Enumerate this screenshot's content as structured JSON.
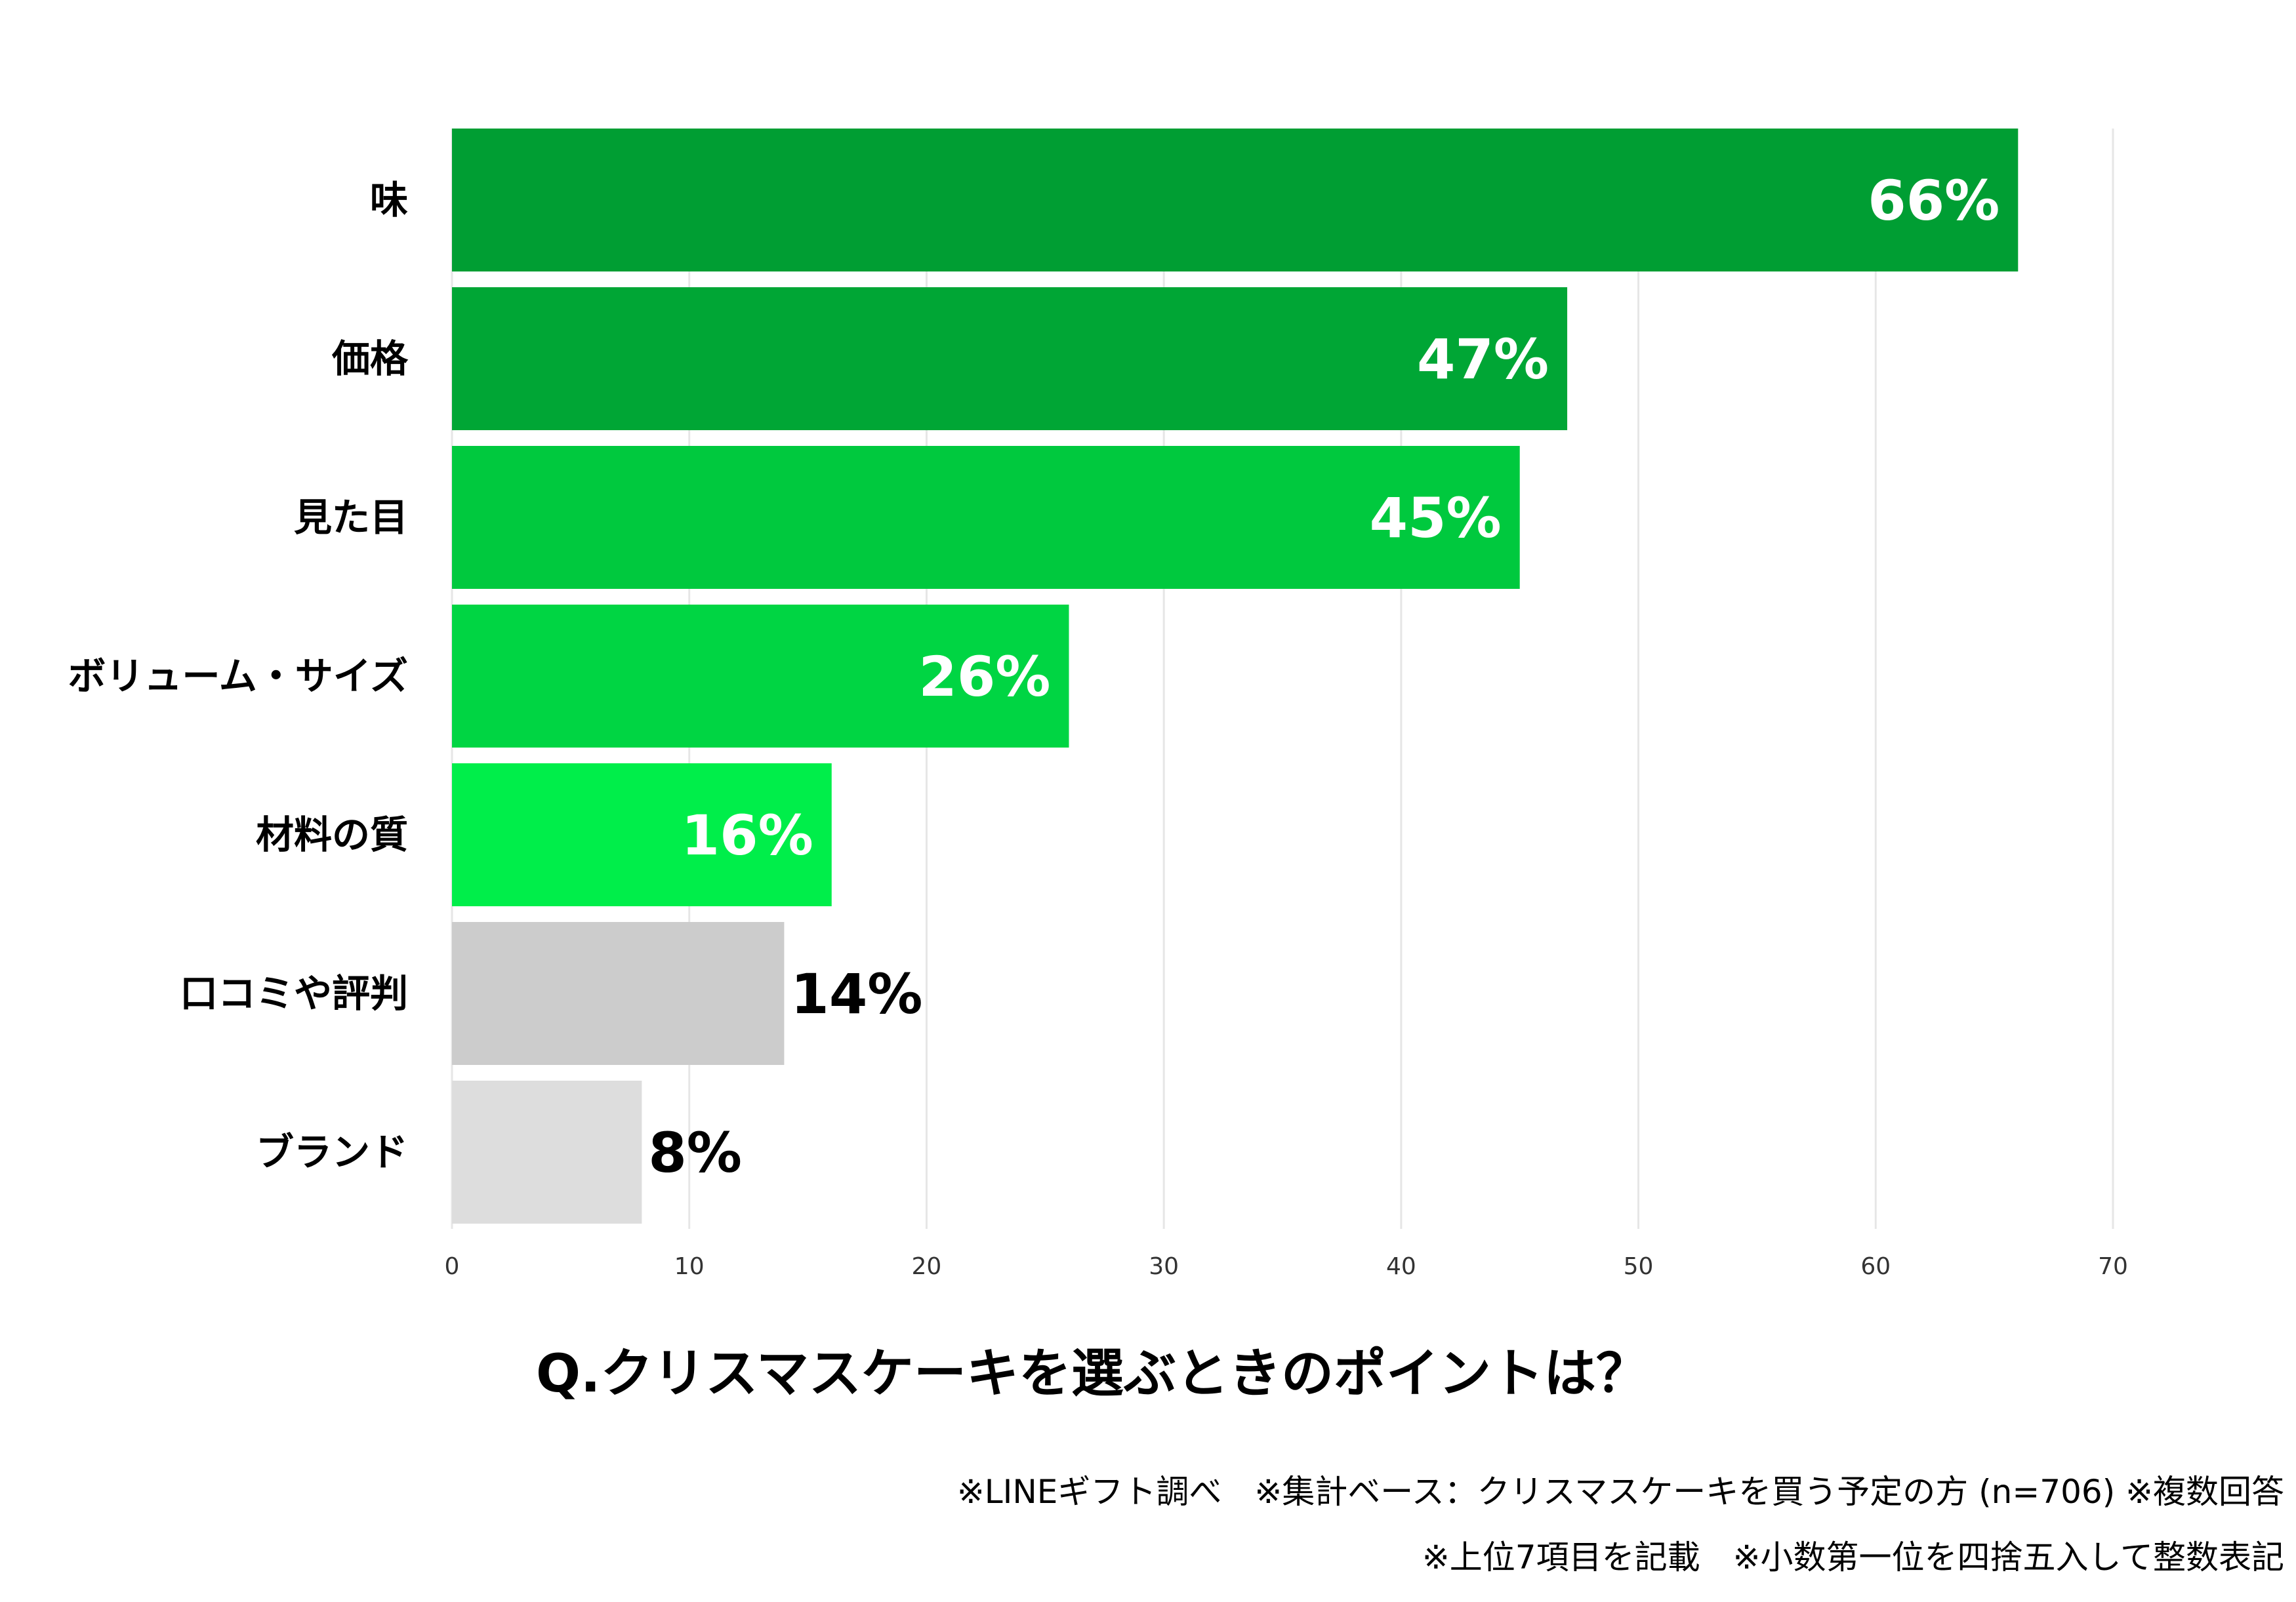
{
  "chart_data": {
    "type": "bar",
    "orientation": "horizontal",
    "title": "Q.クリスマスケーキを選ぶときのポイントは？",
    "categories": [
      "味",
      "価格",
      "見た目",
      "ボリューム・サイズ",
      "材料の質",
      "口コミや評判",
      "ブランド"
    ],
    "values": [
      66,
      47,
      45,
      26,
      16,
      14,
      8
    ],
    "value_labels": [
      "66%",
      "47%",
      "45%",
      "26%",
      "16%",
      "14%",
      "8%"
    ],
    "bar_colors": [
      "#009e33",
      "#00a635",
      "#00c93e",
      "#00d543",
      "#00ee4a",
      "#cccccc",
      "#dddddd"
    ],
    "label_colors": [
      "#ffffff",
      "#ffffff",
      "#ffffff",
      "#ffffff",
      "#ffffff",
      "#000000",
      "#000000"
    ],
    "label_inside": [
      true,
      true,
      true,
      true,
      true,
      false,
      false
    ],
    "x_ticks": [
      0,
      10,
      20,
      30,
      40,
      50,
      60,
      70
    ],
    "x_tick_labels": [
      "0",
      "10",
      "20",
      "30",
      "40",
      "50",
      "60",
      "70"
    ],
    "xlim": [
      0,
      70
    ],
    "grid": true,
    "xlabel": "",
    "ylabel": ""
  },
  "notes": {
    "line1": "※LINEギフト調べ　※集計ベース：クリスマスケーキを買う予定の方 (n=706) ※複数回答",
    "line2": "※上位7項目を記載　※小数第一位を四捨五入して整数表記"
  }
}
